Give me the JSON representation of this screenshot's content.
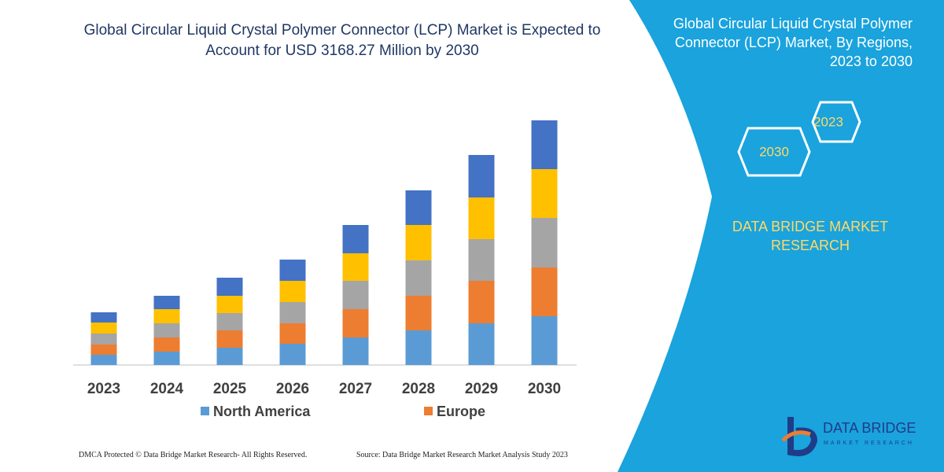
{
  "chart_data": {
    "type": "bar",
    "stacked": true,
    "title": "Global Circular Liquid Crystal Polymer Connector (LCP) Market is Expected to Account for USD 3168.27 Million by 2030",
    "categories": [
      "2023",
      "2024",
      "2025",
      "2026",
      "2027",
      "2028",
      "2029",
      "2030"
    ],
    "series": [
      {
        "name": "North America",
        "color": "#5b9bd5",
        "values": [
          13,
          17,
          22,
          27,
          35,
          44,
          53,
          62
        ]
      },
      {
        "name": "Europe",
        "color": "#ed7d31",
        "values": [
          13,
          18,
          22,
          26,
          36,
          44,
          54,
          62
        ]
      },
      {
        "color": "#a5a5a5",
        "values": [
          14,
          18,
          22,
          27,
          36,
          45,
          53,
          63
        ]
      },
      {
        "color": "#ffc000",
        "values": [
          14,
          18,
          22,
          27,
          35,
          45,
          53,
          62
        ]
      },
      {
        "color": "#4472c4",
        "values": [
          13,
          17,
          23,
          27,
          36,
          44,
          54,
          62
        ]
      }
    ]
  },
  "panel": {
    "title": "Global Circular Liquid Crystal Polymer Connector (LCP) Market, By Regions, 2023 to 2030",
    "hexagons": [
      "2023",
      "2030"
    ],
    "brand": "DATA BRIDGE MARKET RESEARCH"
  },
  "logo": {
    "name": "DATA BRIDGE",
    "tagline": "MARKET RESEARCH"
  },
  "footer": {
    "copyright": "DMCA Protected © Data Bridge Market Research- All Rights Reserved.",
    "source": "Source: Data Bridge Market Research Market Analysis Study 2023"
  }
}
